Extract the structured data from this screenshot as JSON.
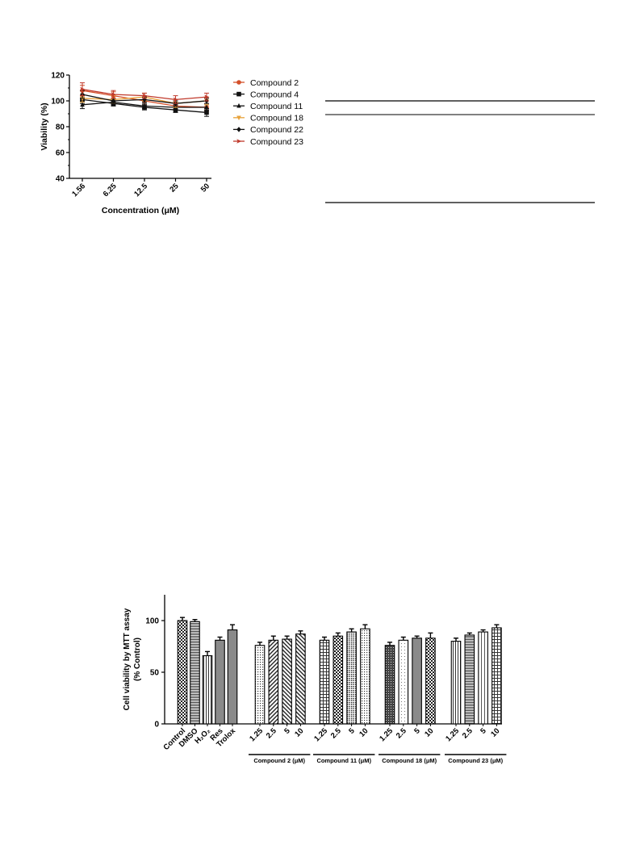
{
  "chart_data": [
    {
      "type": "line",
      "xlabel": "Concentration (μM)",
      "ylabel": "Viability (%)",
      "ylim": [
        40,
        120
      ],
      "yticks": [
        40,
        60,
        80,
        100,
        120
      ],
      "categories": [
        "1.56",
        "6.25",
        "12.5",
        "25",
        "50"
      ],
      "legend_position": "right",
      "series": [
        {
          "name": "Compound 2",
          "color": "#d4502a",
          "marker": "circle",
          "values": [
            108,
            104,
            100,
            96,
            95
          ],
          "errors": [
            4,
            3,
            3,
            3,
            3
          ]
        },
        {
          "name": "Compound 4",
          "color": "#111111",
          "marker": "square",
          "values": [
            101,
            98,
            95,
            93,
            91
          ],
          "errors": [
            3,
            2,
            2,
            2,
            3
          ]
        },
        {
          "name": "Compound 11",
          "color": "#111111",
          "marker": "triangle-up",
          "values": [
            97,
            99,
            96,
            95,
            95
          ],
          "errors": [
            3,
            2,
            2,
            2,
            2
          ]
        },
        {
          "name": "Compound 18",
          "color": "#e8a23a",
          "marker": "triangle-down",
          "values": [
            102,
            101,
            103,
            98,
            100
          ],
          "errors": [
            3,
            3,
            3,
            3,
            3
          ]
        },
        {
          "name": "Compound 22",
          "color": "#111111",
          "marker": "diamond",
          "values": [
            105,
            100,
            101,
            98,
            100
          ],
          "errors": [
            3,
            2,
            2,
            2,
            2
          ]
        },
        {
          "name": "Compound 23",
          "color": "#c0392b",
          "marker": "arrow-right",
          "values": [
            109,
            105,
            104,
            101,
            103
          ],
          "errors": [
            5,
            3,
            2,
            3,
            3
          ]
        }
      ]
    },
    {
      "type": "bar",
      "ylabel": "Cell viability by MTT assay\n(% Control)",
      "ylim": [
        0,
        125
      ],
      "yticks": [
        0,
        50,
        100
      ],
      "categories": [
        "Control",
        "DMSO",
        "H₂O₂",
        "Res",
        "Trolox",
        "1.25",
        "2.5",
        "5",
        "10",
        "1.25",
        "2.5",
        "5",
        "10",
        "1.25",
        "2.5",
        "5",
        "10",
        "1.25",
        "2.5",
        "5",
        "10"
      ],
      "values": [
        100,
        99,
        66,
        81,
        91,
        76,
        81,
        82,
        87,
        81,
        85,
        89,
        92,
        76,
        81,
        83,
        83,
        80,
        86,
        89,
        93
      ],
      "errors": [
        3,
        2,
        4,
        3,
        5,
        3,
        4,
        3,
        3,
        3,
        3,
        3,
        4,
        3,
        3,
        2,
        5,
        3,
        2,
        2,
        3
      ],
      "patterns": [
        "checker",
        "hlines-dense",
        "vlines",
        "solid-gray",
        "solid-gray",
        "dots",
        "diag-right",
        "diag-left",
        "diag-left",
        "grid",
        "checker",
        "dots-dense",
        "dots",
        "dark-grid",
        "dots-light",
        "solid-gray",
        "checker",
        "vlines",
        "hlines-dense",
        "vlines-light",
        "grid"
      ],
      "groups": [
        {
          "label": "Compound 2 (μM)",
          "start": 5,
          "end": 8
        },
        {
          "label": "Compound 11 (μM)",
          "start": 9,
          "end": 12
        },
        {
          "label": "Compound 18 (μM)",
          "start": 13,
          "end": 16
        },
        {
          "label": "Compound 23 (μM)",
          "start": 17,
          "end": 20
        }
      ]
    }
  ]
}
